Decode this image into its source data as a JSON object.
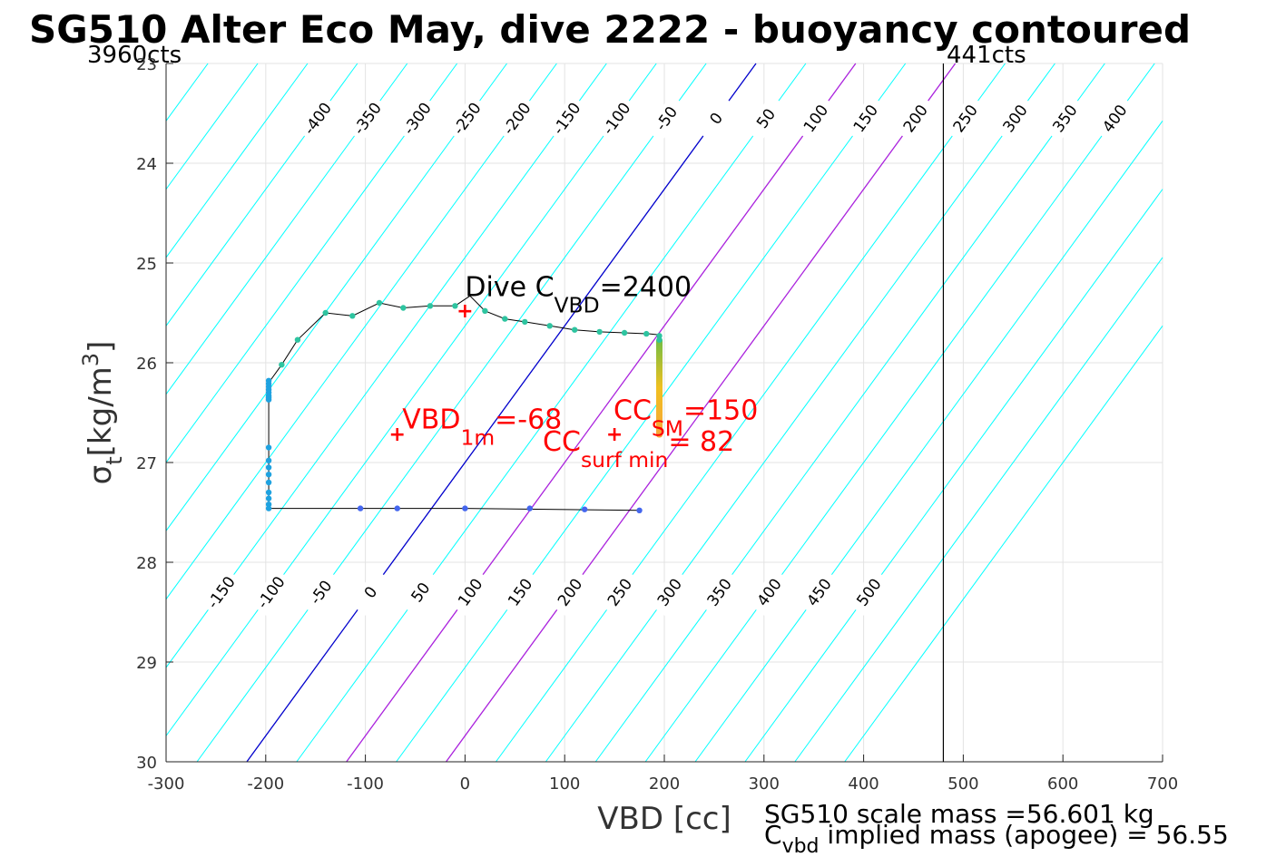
{
  "chart_data": {
    "type": "line",
    "title": "SG510 Alter Eco May, dive 2222 - buoyancy contoured",
    "xlabel": "VBD [cc]",
    "ylabel": "σ",
    "ylabel_sub": "t",
    "ylabel_units": "[kg/m",
    "ylabel_sup": "3",
    "ylabel_close": "]",
    "xlim": [
      -300,
      700
    ],
    "ylim": [
      23,
      30
    ],
    "y_reversed": true,
    "grid": true,
    "x_ticks": [
      -300,
      -200,
      -100,
      0,
      100,
      200,
      300,
      400,
      500,
      600,
      700
    ],
    "x_tick_labels": [
      "-300",
      "-200",
      "-100",
      "0",
      "100",
      "200",
      "300",
      "400",
      "500",
      "600",
      "700"
    ],
    "y_ticks": [
      23,
      24,
      25,
      26,
      27,
      28,
      29,
      30
    ],
    "y_tick_labels": [
      "23",
      "24",
      "25",
      "26",
      "27",
      "28",
      "29",
      "30"
    ],
    "count_label_left": "3960cts",
    "count_label_right": "441cts",
    "vbd_limit_line_x": 480,
    "contours": {
      "slope_cc_per_sigma": -73,
      "levels": [
        -550,
        -500,
        -450,
        -400,
        -350,
        -300,
        -250,
        -200,
        -150,
        -100,
        -50,
        0,
        50,
        100,
        150,
        200,
        250,
        300,
        350,
        400,
        450,
        500,
        550,
        600
      ],
      "top_labels": [
        -400,
        -350,
        -300,
        -250,
        -200,
        -150,
        -100,
        -50,
        0,
        50,
        100,
        150,
        200,
        250,
        300,
        350,
        400,
        450,
        500
      ],
      "bottom_labels": [
        -150,
        -100,
        -50,
        0,
        50,
        100,
        150,
        200,
        250,
        300,
        350,
        400,
        450,
        500
      ],
      "color": "#00ffff",
      "zero_color": "#0000cc",
      "highlight_levels": [
        100,
        200
      ],
      "highlight_color": "#aa22dd"
    },
    "series": [
      {
        "type": "profile_line",
        "color": "#000000",
        "x": [
          175,
          0,
          -197,
          -197,
          -197,
          -197,
          -184,
          -168,
          -140,
          -113,
          -86,
          -62,
          -35,
          -10,
          5,
          20,
          40,
          60,
          85,
          110,
          135,
          160,
          185,
          195
        ],
        "y": [
          27.48,
          27.46,
          27.46,
          26.85,
          26.3,
          26.2,
          26.02,
          25.77,
          25.5,
          25.53,
          25.4,
          25.45,
          25.43,
          25.43,
          25.33,
          25.48,
          25.56,
          25.59,
          25.63,
          25.67,
          25.69,
          25.7,
          25.71,
          25.72
        ]
      },
      {
        "type": "samples_deep",
        "color": "#4466ee",
        "x": [
          175,
          120,
          65,
          0,
          -68,
          -105
        ],
        "y": [
          27.48,
          27.47,
          27.46,
          27.46,
          27.46,
          27.46
        ]
      },
      {
        "type": "samples_wall",
        "color": "#1fa2e0",
        "x": [
          -197,
          -197,
          -197,
          -197,
          -197,
          -197,
          -197,
          -197,
          -197,
          -197,
          -197,
          -197,
          -197,
          -197,
          -197,
          -197,
          -197
        ],
        "y": [
          27.46,
          27.42,
          27.36,
          27.3,
          27.2,
          27.12,
          27.05,
          26.98,
          26.85,
          26.37,
          26.33,
          26.3,
          26.27,
          26.24,
          26.21,
          26.18,
          26.35
        ]
      },
      {
        "type": "samples_shallow",
        "color": "#2ec4a0",
        "x": [
          -184,
          -168,
          -140,
          -113,
          -86,
          -62,
          -35,
          -10,
          20,
          40,
          60,
          85,
          110,
          135,
          160,
          182,
          195,
          195
        ],
        "y": [
          26.02,
          25.77,
          25.5,
          25.53,
          25.4,
          25.45,
          25.43,
          25.43,
          25.48,
          25.56,
          25.59,
          25.63,
          25.67,
          25.69,
          25.7,
          25.71,
          25.73,
          25.77
        ]
      }
    ],
    "surface_column": {
      "x": 195,
      "y_top": 25.75,
      "y_bottom": 26.75,
      "gradient": [
        "#6dbd45",
        "#f0c020",
        "#f7a43a"
      ]
    },
    "markers": [
      {
        "name": "dive-cvbd",
        "x": 0,
        "y": 25.48,
        "symbol": "+",
        "color": "#ff0000"
      },
      {
        "name": "vbd-1m",
        "x": -68,
        "y": 26.72,
        "symbol": "+",
        "color": "#ff0000"
      },
      {
        "name": "cc-sm",
        "x": 150,
        "y": 26.72,
        "symbol": "+",
        "color": "#ff0000"
      }
    ],
    "annotations": {
      "dive_cvbd": {
        "main": "Dive C",
        "sub": "VBD",
        "tail": "=2400",
        "color": "#000000"
      },
      "vbd_1m": {
        "main": "VBD",
        "sub": "1m",
        "tail": "=-68",
        "color": "#ff0000"
      },
      "cc_sm": {
        "main": "CC",
        "sub": "SM",
        "tail": "=150",
        "color": "#ff0000"
      },
      "cc_surf_min": {
        "main": "CC",
        "sub": "surf min",
        "tail": "= 82",
        "color": "#ff0000"
      }
    },
    "footer": {
      "line1": "SG510 scale mass =56.601 kg",
      "line2_main": "C",
      "line2_sub": "vbd",
      "line2_tail": " implied mass (apogee) = 56.55"
    }
  }
}
